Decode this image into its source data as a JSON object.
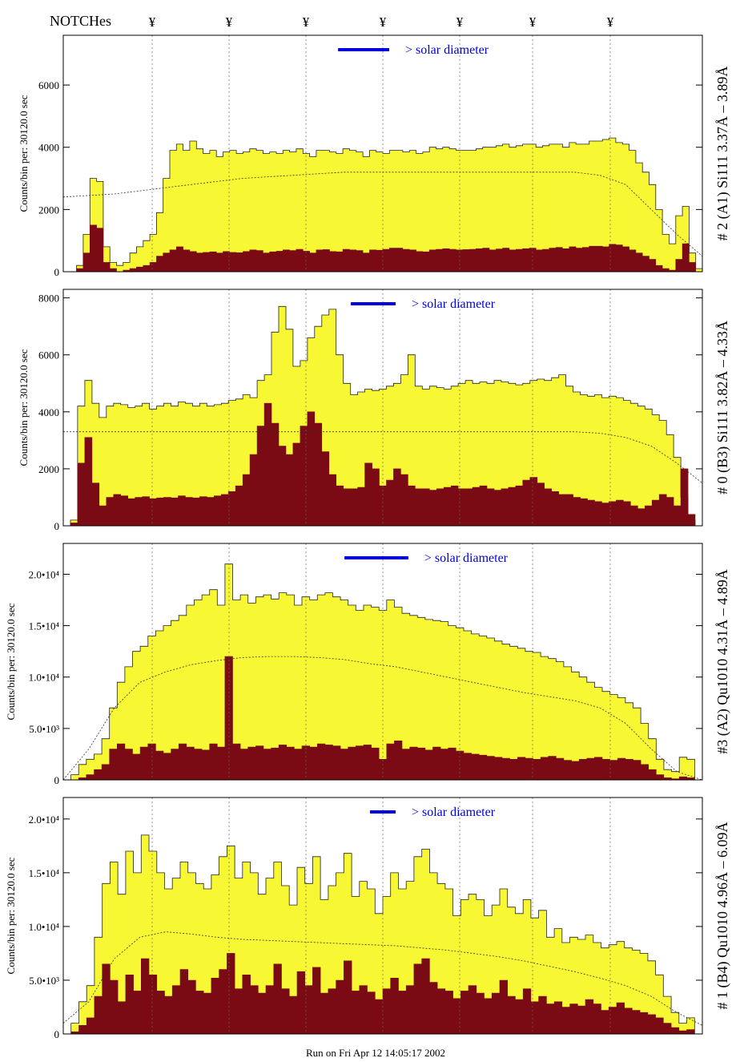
{
  "figure": {
    "notches_label": "NOTCHes",
    "notch_marker": "¥",
    "footer": "Run on Fri Apr 12 14:05:17 2002",
    "solar_label": "> solar diameter",
    "colors": {
      "envelope": "#f7f734",
      "bins": "#7a0a14",
      "solar_bar": "#0000dd",
      "solar_text": "#0000dd",
      "grid": "#666666",
      "axis": "#000000"
    }
  },
  "chart_data": [
    {
      "type": "area",
      "ylabel": "Counts/bin per: 30120.0 sec",
      "panel_label": "# 2 (A1) Si111  3.37Å – 3.89Å",
      "ylim": [
        0,
        7600
      ],
      "yticks": [
        0,
        2000,
        4000,
        6000
      ],
      "ytick_labels": [
        "0",
        "2000",
        "4000",
        "6000"
      ],
      "grid": true,
      "series": [
        {
          "values": [
            0,
            0,
            200,
            1200,
            3000,
            2900,
            800,
            300,
            200,
            300,
            600,
            800,
            1000,
            1200,
            1900,
            3000,
            3900,
            4100,
            3900,
            4200,
            3950,
            3800,
            3900,
            3700,
            3850,
            3900,
            3800,
            3850,
            3950,
            3900,
            3800,
            3850,
            3800,
            3900,
            3850,
            3950,
            3800,
            3700,
            3900,
            3900,
            3850,
            3800,
            3950,
            3900,
            3850,
            3700,
            3900,
            3850,
            3800,
            3900,
            3900,
            3850,
            3900,
            3800,
            3850,
            4000,
            3950,
            4000,
            3950,
            3900,
            3900,
            3900,
            3950,
            4000,
            4000,
            4050,
            4100,
            4000,
            4050,
            4100,
            4100,
            4000,
            4050,
            4100,
            4100,
            4000,
            4150,
            4100,
            4100,
            4200,
            4200,
            4250,
            4300,
            4150,
            4100,
            3900,
            3500,
            3200,
            2800,
            2000,
            1200,
            900,
            1800,
            2100,
            600,
            100
          ]
        },
        {
          "values": [
            0,
            0,
            100,
            600,
            1500,
            1400,
            300,
            100,
            0,
            50,
            100,
            150,
            200,
            300,
            500,
            600,
            700,
            800,
            700,
            650,
            600,
            620,
            640,
            600,
            650,
            620,
            610,
            650,
            700,
            680,
            600,
            640,
            660,
            700,
            680,
            720,
            660,
            600,
            700,
            710,
            650,
            640,
            720,
            700,
            680,
            600,
            700,
            690,
            720,
            760,
            760,
            720,
            700,
            650,
            640,
            700,
            720,
            740,
            720,
            700,
            710,
            720,
            740,
            760,
            700,
            730,
            760,
            700,
            720,
            740,
            760,
            700,
            720,
            760,
            780,
            740,
            800,
            760,
            780,
            820,
            820,
            800,
            880,
            860,
            800,
            700,
            600,
            500,
            400,
            200,
            100,
            50,
            400,
            900,
            300,
            0
          ]
        }
      ],
      "curve": [
        2400,
        2450,
        2500,
        2600,
        2700,
        2800,
        2900,
        3000,
        3050,
        3100,
        3150,
        3200,
        3200,
        3200,
        3200,
        3200,
        3200,
        3200,
        3200,
        3200,
        3200,
        3100,
        2800,
        2000,
        1200,
        500
      ],
      "solar_bar": {
        "x0": 0.43,
        "x1": 0.51
      }
    },
    {
      "type": "area",
      "ylabel": "Counts/bin per: 30120.0 sec",
      "panel_label": "# 0 (B3) Si111  3.82Å – 4.33Å",
      "ylim": [
        0,
        8300
      ],
      "yticks": [
        0,
        2000,
        4000,
        6000,
        8000
      ],
      "ytick_labels": [
        "0",
        "2000",
        "4000",
        "6000",
        "8000"
      ],
      "grid": true,
      "series": [
        {
          "values": [
            0,
            200,
            4200,
            5100,
            4300,
            3800,
            4200,
            4300,
            4250,
            4150,
            4200,
            4300,
            4100,
            4200,
            4300,
            4200,
            4350,
            4300,
            4200,
            4300,
            4200,
            4250,
            4300,
            4400,
            4450,
            4600,
            4500,
            5100,
            5300,
            6800,
            7700,
            6900,
            5600,
            5800,
            6600,
            7000,
            7400,
            7600,
            6000,
            5000,
            4600,
            4700,
            4800,
            4750,
            4800,
            4900,
            5000,
            5300,
            6000,
            4900,
            4800,
            4900,
            4850,
            4800,
            4900,
            5000,
            5100,
            5000,
            5050,
            5000,
            5100,
            5050,
            5000,
            4950,
            5000,
            5100,
            5150,
            5100,
            5200,
            5300,
            4900,
            4700,
            4600,
            4550,
            4600,
            4500,
            4550,
            4500,
            4400,
            4300,
            4200,
            4100,
            3900,
            3700,
            3200,
            2400,
            1000,
            200,
            0
          ]
        },
        {
          "values": [
            0,
            100,
            2200,
            3100,
            1500,
            700,
            1000,
            1100,
            1050,
            950,
            1000,
            1020,
            950,
            980,
            1000,
            980,
            1050,
            1000,
            980,
            1020,
            1000,
            1050,
            1100,
            1200,
            1400,
            1800,
            2500,
            3500,
            4300,
            3600,
            2800,
            2500,
            2900,
            3500,
            4000,
            3600,
            2600,
            1800,
            1400,
            1300,
            1300,
            1350,
            2200,
            2000,
            1400,
            1600,
            2000,
            1800,
            1400,
            1300,
            1300,
            1250,
            1300,
            1350,
            1400,
            1300,
            1300,
            1350,
            1400,
            1300,
            1250,
            1300,
            1350,
            1400,
            1600,
            1700,
            1500,
            1300,
            1200,
            1100,
            1100,
            1000,
            950,
            900,
            850,
            800,
            850,
            900,
            850,
            700,
            600,
            700,
            900,
            1100,
            1000,
            700,
            2000,
            400,
            0
          ]
        }
      ],
      "curve": [
        3300,
        3300,
        3300,
        3300,
        3300,
        3300,
        3300,
        3300,
        3300,
        3300,
        3300,
        3300,
        3300,
        3300,
        3300,
        3300,
        3300,
        3300,
        3300,
        3300,
        3300,
        3250,
        3100,
        2800,
        2200,
        1500
      ],
      "solar_bar": {
        "x0": 0.45,
        "x1": 0.52
      }
    },
    {
      "type": "area",
      "ylabel": "Counts/bin per: 30120.0 sec",
      "panel_label": "#3 (A2) Qu1010  4.31Å – 4.89Å",
      "ylim": [
        0,
        23000
      ],
      "yticks": [
        0,
        5000,
        10000,
        15000,
        20000
      ],
      "ytick_labels": [
        "0",
        "5.0•10³",
        "1.0•10⁴",
        "1.5•10⁴",
        "2.0•10⁴"
      ],
      "grid": true,
      "series": [
        {
          "values": [
            0,
            500,
            1500,
            2000,
            2500,
            4000,
            7000,
            9500,
            11000,
            12500,
            13000,
            14000,
            14500,
            15000,
            15500,
            16000,
            17000,
            17500,
            18000,
            18500,
            17000,
            21000,
            17500,
            18000,
            17200,
            17800,
            18000,
            17600,
            18200,
            18000,
            17000,
            17800,
            17500,
            18000,
            18200,
            17800,
            17500,
            17000,
            16500,
            17000,
            16800,
            16500,
            17500,
            16800,
            16200,
            16000,
            15800,
            15600,
            15500,
            15400,
            15000,
            14800,
            14500,
            14200,
            14000,
            13800,
            13500,
            13200,
            13000,
            12800,
            12500,
            12400,
            12000,
            11800,
            11500,
            11000,
            10500,
            10000,
            9500,
            9000,
            8600,
            8300,
            8000,
            7500,
            7000,
            5500,
            4000,
            2000,
            1000,
            800,
            2200,
            2000,
            0
          ]
        },
        {
          "values": [
            0,
            0,
            200,
            500,
            1000,
            1500,
            3000,
            3500,
            3000,
            2500,
            3200,
            3500,
            2800,
            2600,
            3000,
            3500,
            3200,
            3000,
            2900,
            3500,
            3200,
            12000,
            3500,
            3000,
            3200,
            3300,
            3000,
            3100,
            3400,
            3200,
            3000,
            3300,
            3200,
            3500,
            3400,
            3300,
            3000,
            3200,
            3300,
            3400,
            3100,
            2000,
            3500,
            3800,
            3000,
            3200,
            3100,
            2900,
            3200,
            3000,
            3100,
            2800,
            2600,
            2500,
            2400,
            2300,
            2200,
            2100,
            2000,
            2200,
            2100,
            2000,
            2200,
            2300,
            2100,
            1900,
            1800,
            2000,
            2100,
            2200,
            2000,
            1900,
            2100,
            2000,
            1900,
            1500,
            1000,
            500,
            200,
            100,
            300,
            200,
            0
          ]
        }
      ],
      "curve": [
        0,
        3000,
        7000,
        9500,
        10500,
        11200,
        11600,
        11900,
        12000,
        12000,
        11900,
        11700,
        11300,
        11000,
        10500,
        10000,
        9500,
        9000,
        8500,
        8100,
        7700,
        7000,
        5500,
        3000,
        800,
        0
      ],
      "solar_bar": {
        "x0": 0.44,
        "x1": 0.54
      }
    },
    {
      "type": "area",
      "ylabel": "Counts/bin per: 30120.0 sec",
      "panel_label": "# 1 (B4) Qu1010 4.96Å – 6.09Å",
      "ylim": [
        0,
        22000
      ],
      "yticks": [
        0,
        5000,
        10000,
        15000,
        20000
      ],
      "ytick_labels": [
        "0",
        "5.0•10³",
        "1.0•10⁴",
        "1.5•10⁴",
        "2.0•10⁴"
      ],
      "grid": true,
      "series": [
        {
          "values": [
            0,
            1000,
            3000,
            4500,
            9000,
            14000,
            16000,
            13000,
            17000,
            15000,
            18500,
            17000,
            15000,
            13500,
            14500,
            16000,
            15000,
            14000,
            13500,
            14800,
            16500,
            17500,
            14500,
            16000,
            15000,
            13000,
            14500,
            16000,
            13800,
            12000,
            15500,
            14000,
            16500,
            12500,
            13800,
            15000,
            16800,
            12800,
            14200,
            13500,
            11200,
            12800,
            15000,
            13500,
            14200,
            16500,
            17200,
            15000,
            14000,
            13500,
            11000,
            12500,
            13000,
            12500,
            11000,
            12000,
            13500,
            11800,
            11200,
            12500,
            10800,
            11500,
            9000,
            9800,
            8500,
            9000,
            8800,
            9200,
            8500,
            8000,
            8300,
            8600,
            8000,
            7800,
            7500,
            6800,
            5500,
            3500,
            2000,
            1000,
            1500,
            0
          ]
        },
        {
          "values": [
            0,
            200,
            800,
            1500,
            3500,
            6500,
            5000,
            3000,
            5500,
            4000,
            7000,
            5500,
            4000,
            3500,
            4500,
            6000,
            5000,
            4000,
            3800,
            5200,
            6000,
            7500,
            4200,
            5500,
            4500,
            3800,
            4500,
            6500,
            4200,
            3500,
            5800,
            4500,
            6200,
            3800,
            4200,
            5000,
            6800,
            4000,
            4500,
            3900,
            3200,
            4200,
            5200,
            4000,
            4500,
            6500,
            7000,
            4800,
            4200,
            4000,
            3300,
            4000,
            4500,
            3800,
            3300,
            3800,
            5000,
            3500,
            3200,
            4200,
            3000,
            3500,
            2800,
            3000,
            2500,
            2800,
            2600,
            3200,
            2800,
            2200,
            2500,
            2900,
            2400,
            2200,
            2000,
            1800,
            1500,
            1000,
            600,
            300,
            400,
            0
          ]
        }
      ],
      "curve": [
        1000,
        3000,
        7000,
        9000,
        9500,
        9300,
        9000,
        8800,
        8700,
        8600,
        8500,
        8400,
        8300,
        8200,
        8000,
        7800,
        7500,
        7200,
        6800,
        6300,
        5800,
        5200,
        4500,
        3500,
        2000,
        800
      ],
      "solar_bar": {
        "x0": 0.48,
        "x1": 0.52
      }
    }
  ]
}
